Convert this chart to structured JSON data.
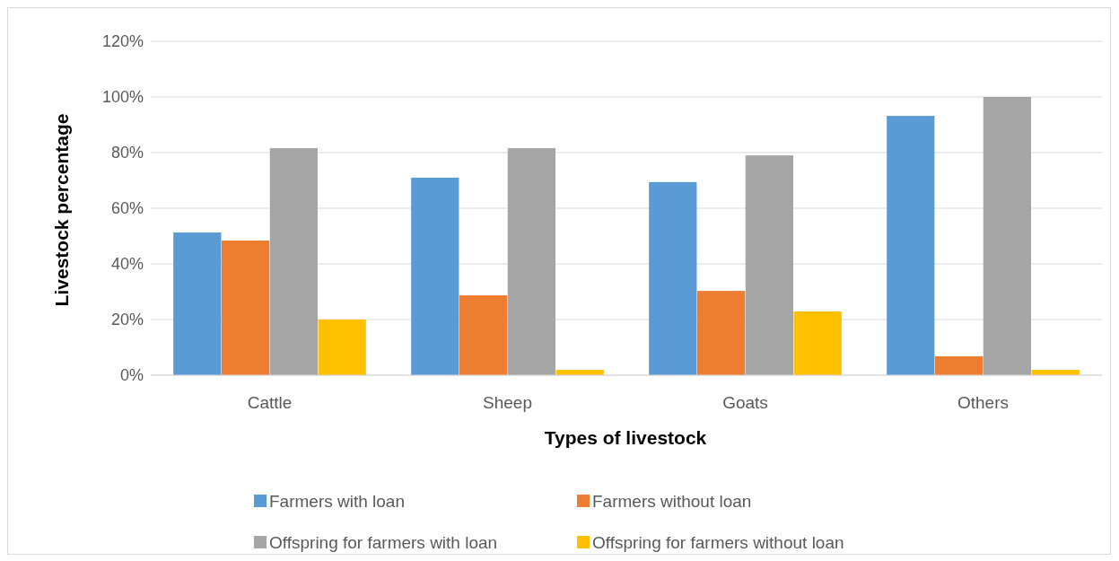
{
  "chart_data": {
    "type": "bar",
    "xlabel": "Types of livestock",
    "ylabel": "Livestock percentage",
    "categories": [
      "Cattle",
      "Sheep",
      "Goats",
      "Others"
    ],
    "series": [
      {
        "name": "Farmers with loan",
        "color": "#5b9bd5",
        "values": [
          51.3,
          71,
          69.4,
          93.2
        ]
      },
      {
        "name": "Farmers without loan",
        "color": "#ed7d31",
        "values": [
          48.4,
          28.7,
          30.3,
          6.8
        ]
      },
      {
        "name": "Offspring for farmers with loan",
        "color": "#a5a5a5",
        "values": [
          81.6,
          81.6,
          79,
          100
        ]
      },
      {
        "name": "Offspring for farmers without loan",
        "color": "#ffc000",
        "values": [
          20,
          1.9,
          22.9,
          1.9
        ]
      }
    ],
    "ylim": [
      0,
      120
    ],
    "yticks": [
      {
        "value": 0,
        "label": "0%"
      },
      {
        "value": 20,
        "label": "20%"
      },
      {
        "value": 40,
        "label": "40%"
      },
      {
        "value": 60,
        "label": "60%"
      },
      {
        "value": 80,
        "label": "80%"
      },
      {
        "value": 100,
        "label": "100%"
      },
      {
        "value": 120,
        "label": "120%"
      }
    ],
    "grid": "y",
    "legend": "bottom"
  }
}
